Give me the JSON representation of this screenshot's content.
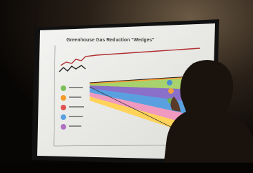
{
  "screen": {
    "title": "Greenhouse Gas Reduction \"Wedges\""
  }
}
